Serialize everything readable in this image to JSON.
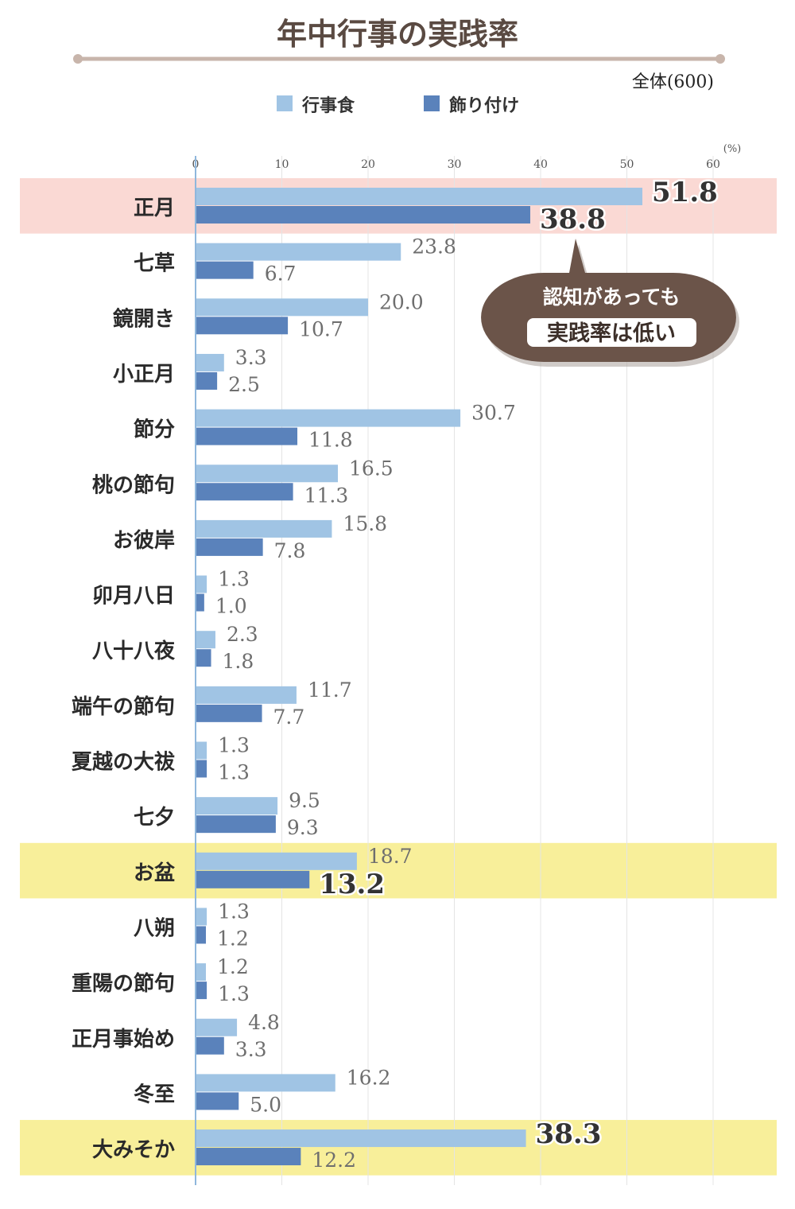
{
  "chart_data": {
    "type": "bar",
    "orientation": "horizontal",
    "title": "年中行事の実践率",
    "subtitle": "全体(600)",
    "unit": "(%)",
    "xlim": [
      0,
      60
    ],
    "ticks": [
      0,
      10,
      20,
      30,
      40,
      50,
      60
    ],
    "grid": true,
    "legend_position": "top",
    "categories": [
      "正月",
      "七草",
      "鏡開き",
      "小正月",
      "節分",
      "桃の節句",
      "お彼岸",
      "卯月八日",
      "八十八夜",
      "端午の節句",
      "夏越の大祓",
      "七夕",
      "お盆",
      "八朔",
      "重陽の節句",
      "正月事始め",
      "冬至",
      "大みそか"
    ],
    "series": [
      {
        "name": "行事食",
        "color": "#a0c4e4",
        "values": [
          51.8,
          23.8,
          20.0,
          3.3,
          30.7,
          16.5,
          15.8,
          1.3,
          2.3,
          11.7,
          1.3,
          9.5,
          18.7,
          1.3,
          1.2,
          4.8,
          16.2,
          38.3
        ]
      },
      {
        "name": "飾り付け",
        "color": "#5a82bb",
        "values": [
          38.8,
          6.7,
          10.7,
          2.5,
          11.8,
          11.3,
          7.8,
          1.0,
          1.8,
          7.7,
          1.3,
          9.3,
          13.2,
          1.2,
          1.3,
          3.3,
          5.0,
          12.2
        ]
      }
    ],
    "value_labels": [
      [
        "51.8",
        "38.8"
      ],
      [
        "23.8",
        "6.7"
      ],
      [
        "20.0",
        "10.7"
      ],
      [
        "3.3",
        "2.5"
      ],
      [
        "30.7",
        "11.8"
      ],
      [
        "16.5",
        "11.3"
      ],
      [
        "15.8",
        "7.8"
      ],
      [
        "1.3",
        "1.0"
      ],
      [
        "2.3",
        "1.8"
      ],
      [
        "11.7",
        "7.7"
      ],
      [
        "1.3",
        "1.3"
      ],
      [
        "9.5",
        "9.3"
      ],
      [
        "18.7",
        "13.2"
      ],
      [
        "1.3",
        "1.2"
      ],
      [
        "1.2",
        "1.3"
      ],
      [
        "4.8",
        "3.3"
      ],
      [
        "16.2",
        "5.0"
      ],
      [
        "38.3",
        "12.2"
      ]
    ],
    "highlights": [
      {
        "category": "正月",
        "color": "#fad9d4",
        "emphasized_series": [
          "行事食",
          "飾り付け"
        ]
      },
      {
        "category": "お盆",
        "color": "#f8ef9a",
        "emphasized_series": [
          "飾り付け"
        ]
      },
      {
        "category": "大みそか",
        "color": "#f8ef9a",
        "emphasized_series": [
          "行事食"
        ]
      }
    ],
    "annotation": {
      "line1": "認知があっても",
      "line2": "実践率は低い",
      "bubble_color": "#6b5449",
      "points_to": "正月"
    }
  }
}
